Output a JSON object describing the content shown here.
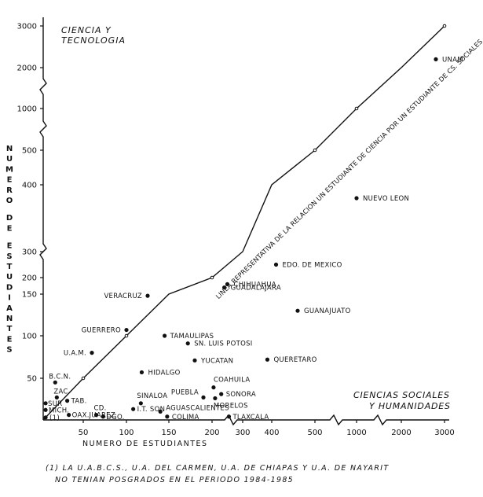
{
  "chart_data": {
    "type": "scatter",
    "title": "",
    "xlabel": "NUMERO DE ESTUDIANTES",
    "ylabel": "NUMERO DE ESTUDIANTES",
    "x_scale": "broken",
    "y_scale": "broken",
    "xlim": [
      0,
      3000
    ],
    "ylim": [
      0,
      3000
    ],
    "x_ticks": [
      "50",
      "100",
      "150",
      "200",
      "300",
      "400",
      "500",
      "1000",
      "2000",
      "3000"
    ],
    "y_ticks": [
      "50",
      "100",
      "150",
      "200",
      "300",
      "400",
      "500",
      "1000",
      "2000",
      "3000"
    ],
    "region_labels": {
      "top_left": [
        "CIENCIA Y",
        "TECNOLOGIA"
      ],
      "bottom_right": [
        "CIENCIAS SOCIALES",
        "Y HUMANIDADES"
      ]
    },
    "diagonal_label": "LINEA REPRESENTATIVA DE LA RELACION UN ESTUDIANTE DE CIENCIA POR UN ESTUDIANTE DE CS. SOCIALES",
    "points": [
      {
        "label": "UNAM",
        "x": 2800,
        "y": 2200
      },
      {
        "label": "NUEVO LEON",
        "x": 1000,
        "y": 380
      },
      {
        "label": "EDO. DE MEXICO",
        "x": 410,
        "y": 250
      },
      {
        "label": "CHIHUAHUA",
        "x": 250,
        "y": 180
      },
      {
        "label": "GUADALAJARA",
        "x": 240,
        "y": 170
      },
      {
        "label": "GUANAJUATO",
        "x": 460,
        "y": 130
      },
      {
        "label": "VERACRUZ",
        "x": 125,
        "y": 148
      },
      {
        "label": "GUERRERO",
        "x": 100,
        "y": 107
      },
      {
        "label": "TAMAULIPAS",
        "x": 145,
        "y": 100
      },
      {
        "label": "SN. LUIS POTOSI",
        "x": 172,
        "y": 91
      },
      {
        "label": "U.A.M.",
        "x": 60,
        "y": 80
      },
      {
        "label": "YUCATAN",
        "x": 180,
        "y": 71
      },
      {
        "label": "QUERETARO",
        "x": 385,
        "y": 72
      },
      {
        "label": "HIDALGO",
        "x": 118,
        "y": 57
      },
      {
        "label": "B.C.N.",
        "x": 15,
        "y": 45
      },
      {
        "label": "COAHUILA",
        "x": 205,
        "y": 39
      },
      {
        "label": "SONORA",
        "x": 230,
        "y": 31
      },
      {
        "label": "PUEBLA",
        "x": 190,
        "y": 27
      },
      {
        "label": "MORELOS",
        "x": 210,
        "y": 26
      },
      {
        "label": "ZAC.",
        "x": 17,
        "y": 27
      },
      {
        "label": "TAB.",
        "x": 30,
        "y": 23
      },
      {
        "label": "SINALOA",
        "x": 117,
        "y": 20
      },
      {
        "label": "SUR",
        "x": 3,
        "y": 20
      },
      {
        "label": "I.T. SON",
        "x": 108,
        "y": 13
      },
      {
        "label": "AGUASCALIENTES",
        "x": 140,
        "y": 10
      },
      {
        "label": "MICH.",
        "x": 3,
        "y": 12
      },
      {
        "label": "CD. JUAREZ",
        "x": 65,
        "y": 6
      },
      {
        "label": "OAX.",
        "x": 32,
        "y": 6
      },
      {
        "label": "DGO.",
        "x": 73,
        "y": 4
      },
      {
        "label": "COLIMA",
        "x": 148,
        "y": 4
      },
      {
        "label": "TLAXCALA",
        "x": 255,
        "y": 4
      },
      {
        "label": "(1)",
        "x": 3,
        "y": 3
      }
    ]
  },
  "footnote": {
    "line1": "(1) LA U.A.B.C.S., U.A. DEL CARMEN, U.A. DE CHIAPAS Y U.A. DE NAYARIT",
    "line2": "NO TENIAN POSGRADOS EN EL PERIODO 1984-1985"
  }
}
